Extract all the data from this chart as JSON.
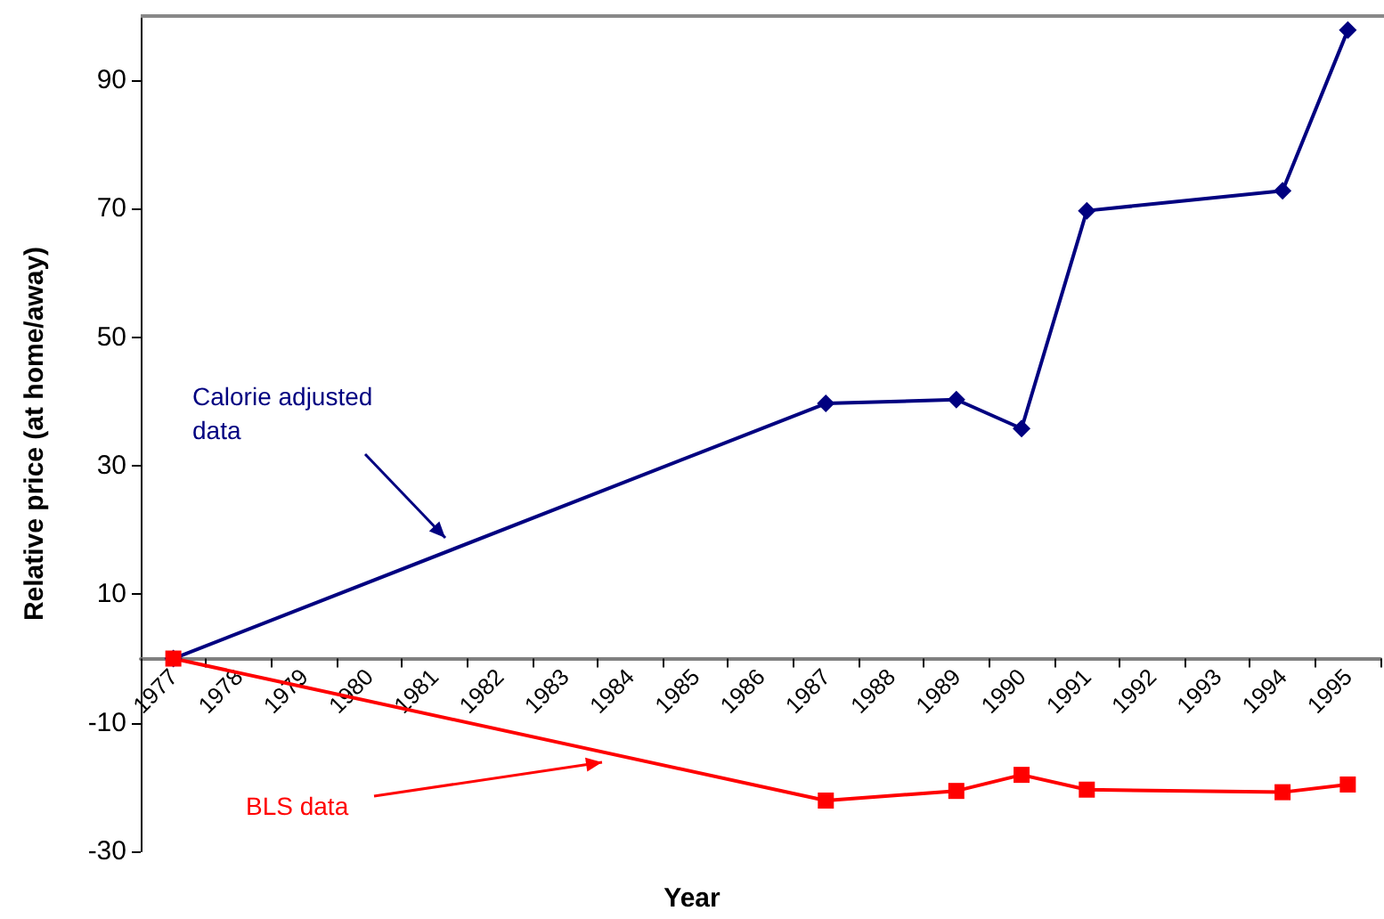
{
  "chart_data": {
    "type": "line",
    "xlabel": "Year",
    "ylabel": "Relative price (at home/away)",
    "categories": [
      "1977",
      "1978",
      "1979",
      "1980",
      "1981",
      "1982",
      "1983",
      "1984",
      "1985",
      "1986",
      "1987",
      "1988",
      "1989",
      "1990",
      "1991",
      "1992",
      "1993",
      "1994",
      "1995"
    ],
    "series": [
      {
        "color": "#000080",
        "marker": "diamond",
        "values": [
          0,
          null,
          null,
          null,
          null,
          null,
          null,
          null,
          null,
          null,
          39.7,
          null,
          40.3,
          35.8,
          69.7,
          null,
          null,
          72.8,
          97.8
        ]
      },
      {
        "color": "#ff0000",
        "marker": "square",
        "values": [
          0,
          null,
          null,
          null,
          null,
          null,
          null,
          null,
          null,
          null,
          -22.1,
          null,
          -20.6,
          -18.1,
          -20.4,
          null,
          null,
          -20.8,
          -19.6
        ]
      }
    ],
    "annotations": [
      "Calorie adjusted\ndata",
      "BLS data"
    ],
    "ylim": [
      -30,
      100
    ],
    "yticks": [
      -30,
      -10,
      10,
      30,
      50,
      70,
      90
    ],
    "grid": false
  }
}
